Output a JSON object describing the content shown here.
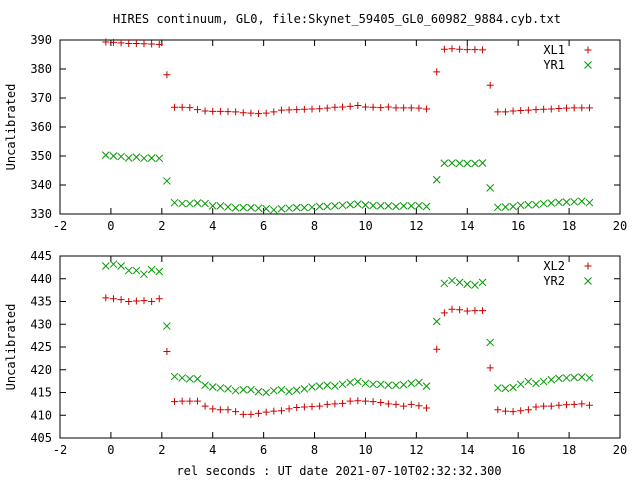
{
  "title": "HIRES continuum, GL0, file:Skynet_59405_GL0_60982_9884.cyb.txt",
  "xlabel": "rel seconds : UT date 2021-07-10T02:32:32.300",
  "chart_data": [
    {
      "type": "scatter",
      "ylabel": "Uncalibrated",
      "xlim": [
        -2,
        20
      ],
      "ylim": [
        330,
        390
      ],
      "xticks": [
        -2,
        0,
        2,
        4,
        6,
        8,
        10,
        12,
        14,
        16,
        18,
        20
      ],
      "yticks": [
        330,
        340,
        350,
        360,
        370,
        380,
        390
      ],
      "legend_position": "top-right",
      "grid": false,
      "series": [
        {
          "name": "XL1",
          "marker": "plus",
          "color": "#cc0000",
          "x": [
            -0.2,
            0.1,
            0.4,
            0.7,
            1.0,
            1.3,
            1.6,
            1.9,
            2.2,
            2.5,
            2.8,
            3.1,
            3.4,
            3.7,
            4.0,
            4.3,
            4.6,
            4.9,
            5.2,
            5.5,
            5.8,
            6.1,
            6.4,
            6.7,
            7.0,
            7.3,
            7.6,
            7.9,
            8.2,
            8.5,
            8.8,
            9.1,
            9.4,
            9.7,
            10.0,
            10.3,
            10.6,
            10.9,
            11.2,
            11.5,
            11.8,
            12.1,
            12.4,
            12.8,
            13.1,
            13.4,
            13.7,
            14.0,
            14.3,
            14.6,
            14.9,
            15.2,
            15.5,
            15.8,
            16.1,
            16.4,
            16.7,
            17.0,
            17.3,
            17.6,
            17.9,
            18.2,
            18.5,
            18.8
          ],
          "y": [
            389.3,
            389.2,
            389.0,
            388.8,
            388.8,
            388.7,
            388.6,
            388.5,
            378.0,
            366.8,
            366.8,
            366.7,
            366.0,
            365.5,
            365.4,
            365.4,
            365.3,
            365.2,
            364.9,
            364.8,
            364.6,
            364.8,
            365.2,
            365.8,
            365.9,
            366.0,
            366.1,
            366.2,
            366.3,
            366.5,
            366.8,
            366.9,
            367.1,
            367.4,
            366.9,
            366.8,
            366.7,
            366.9,
            366.6,
            366.6,
            366.6,
            366.5,
            366.2,
            379.0,
            386.8,
            387.0,
            386.8,
            386.7,
            386.7,
            386.6,
            374.4,
            365.2,
            365.2,
            365.5,
            365.7,
            365.8,
            366.0,
            366.1,
            366.2,
            366.4,
            366.5,
            366.6,
            366.6,
            366.6
          ]
        },
        {
          "name": "YR1",
          "marker": "x",
          "color": "#009900",
          "x": [
            -0.2,
            0.1,
            0.4,
            0.7,
            1.0,
            1.3,
            1.6,
            1.9,
            2.2,
            2.5,
            2.8,
            3.1,
            3.4,
            3.7,
            4.0,
            4.3,
            4.6,
            4.9,
            5.2,
            5.5,
            5.8,
            6.1,
            6.4,
            6.7,
            7.0,
            7.3,
            7.6,
            7.9,
            8.2,
            8.5,
            8.8,
            9.1,
            9.4,
            9.7,
            10.0,
            10.3,
            10.6,
            10.9,
            11.2,
            11.5,
            11.8,
            12.1,
            12.4,
            12.8,
            13.1,
            13.4,
            13.7,
            14.0,
            14.3,
            14.6,
            14.9,
            15.2,
            15.5,
            15.8,
            16.1,
            16.4,
            16.7,
            17.0,
            17.3,
            17.6,
            17.9,
            18.2,
            18.5,
            18.8
          ],
          "y": [
            350.3,
            350.0,
            349.8,
            349.3,
            349.6,
            349.2,
            349.3,
            349.2,
            341.4,
            333.9,
            333.6,
            333.6,
            333.8,
            333.6,
            332.8,
            332.8,
            332.4,
            332.1,
            332.2,
            332.2,
            332.0,
            331.8,
            331.4,
            331.8,
            332.0,
            332.2,
            332.2,
            332.3,
            332.6,
            332.6,
            332.8,
            333.0,
            333.2,
            333.4,
            333.1,
            332.9,
            332.8,
            332.8,
            332.6,
            332.8,
            332.8,
            332.9,
            332.6,
            341.8,
            347.5,
            347.6,
            347.5,
            347.4,
            347.4,
            347.6,
            339.0,
            332.3,
            332.4,
            332.6,
            333.0,
            333.2,
            333.2,
            333.6,
            333.8,
            334.0,
            334.1,
            334.2,
            334.4,
            333.9
          ]
        }
      ]
    },
    {
      "type": "scatter",
      "ylabel": "Uncalibrated",
      "xlim": [
        -2,
        20
      ],
      "ylim": [
        405,
        445
      ],
      "xticks": [
        -2,
        0,
        2,
        4,
        6,
        8,
        10,
        12,
        14,
        16,
        18,
        20
      ],
      "yticks": [
        405,
        410,
        415,
        420,
        425,
        430,
        435,
        440,
        445
      ],
      "legend_position": "top-right",
      "grid": false,
      "series": [
        {
          "name": "XL2",
          "marker": "plus",
          "color": "#cc0000",
          "x": [
            -0.2,
            0.1,
            0.4,
            0.7,
            1.0,
            1.3,
            1.6,
            1.9,
            2.2,
            2.5,
            2.8,
            3.1,
            3.4,
            3.7,
            4.0,
            4.3,
            4.6,
            4.9,
            5.2,
            5.5,
            5.8,
            6.1,
            6.4,
            6.7,
            7.0,
            7.3,
            7.6,
            7.9,
            8.2,
            8.5,
            8.8,
            9.1,
            9.4,
            9.7,
            10.0,
            10.3,
            10.6,
            10.9,
            11.2,
            11.5,
            11.8,
            12.1,
            12.4,
            12.8,
            13.1,
            13.4,
            13.7,
            14.0,
            14.3,
            14.6,
            14.9,
            15.2,
            15.5,
            15.8,
            16.1,
            16.4,
            16.7,
            17.0,
            17.3,
            17.6,
            17.9,
            18.2,
            18.5,
            18.8
          ],
          "y": [
            435.8,
            435.6,
            435.4,
            435.0,
            435.1,
            435.2,
            435.0,
            435.6,
            424.0,
            413.0,
            413.1,
            413.1,
            413.1,
            412.0,
            411.4,
            411.2,
            411.2,
            410.8,
            410.2,
            410.2,
            410.4,
            410.7,
            410.9,
            411.0,
            411.4,
            411.7,
            411.8,
            411.9,
            412.0,
            412.4,
            412.5,
            412.6,
            413.1,
            413.2,
            413.1,
            413.0,
            412.8,
            412.5,
            412.4,
            412.0,
            412.4,
            412.1,
            411.6,
            424.5,
            432.5,
            433.3,
            433.2,
            432.9,
            433.0,
            433.0,
            420.4,
            411.2,
            410.9,
            410.8,
            411.0,
            411.2,
            411.8,
            412.0,
            412.0,
            412.2,
            412.3,
            412.4,
            412.5,
            412.2
          ]
        },
        {
          "name": "YR2",
          "marker": "x",
          "color": "#009900",
          "x": [
            -0.2,
            0.1,
            0.4,
            0.7,
            1.0,
            1.3,
            1.6,
            1.9,
            2.2,
            2.5,
            2.8,
            3.1,
            3.4,
            3.7,
            4.0,
            4.3,
            4.6,
            4.9,
            5.2,
            5.5,
            5.8,
            6.1,
            6.4,
            6.7,
            7.0,
            7.3,
            7.6,
            7.9,
            8.2,
            8.5,
            8.8,
            9.1,
            9.4,
            9.7,
            10.0,
            10.3,
            10.6,
            10.9,
            11.2,
            11.5,
            11.8,
            12.1,
            12.4,
            12.8,
            13.1,
            13.4,
            13.7,
            14.0,
            14.3,
            14.6,
            14.9,
            15.2,
            15.5,
            15.8,
            16.1,
            16.4,
            16.7,
            17.0,
            17.3,
            17.6,
            17.9,
            18.2,
            18.5,
            18.8
          ],
          "y": [
            442.8,
            443.2,
            442.8,
            441.8,
            441.8,
            441.0,
            442.0,
            441.6,
            429.6,
            418.5,
            418.2,
            418.0,
            418.0,
            416.6,
            416.2,
            416.0,
            415.8,
            415.4,
            415.6,
            415.6,
            415.2,
            415.0,
            415.4,
            415.6,
            415.2,
            415.5,
            415.8,
            416.2,
            416.4,
            416.6,
            416.4,
            416.8,
            417.2,
            417.4,
            417.0,
            416.8,
            416.8,
            416.6,
            416.6,
            416.7,
            417.0,
            417.2,
            416.4,
            430.6,
            439.0,
            439.6,
            439.2,
            438.8,
            438.6,
            439.2,
            426.0,
            416.0,
            415.9,
            416.1,
            416.8,
            417.4,
            417.0,
            417.4,
            417.8,
            418.1,
            418.2,
            418.3,
            418.4,
            418.2
          ]
        }
      ]
    }
  ]
}
